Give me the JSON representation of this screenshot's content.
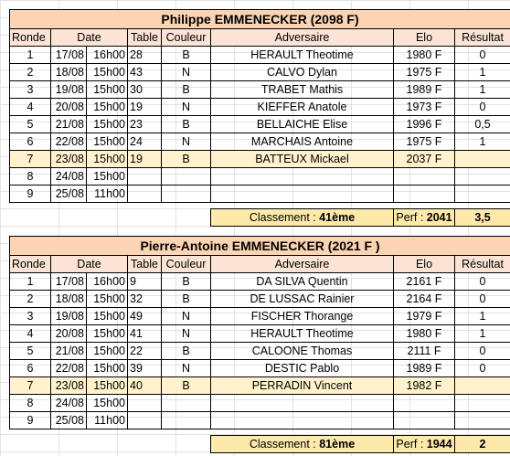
{
  "players": [
    {
      "title": "Philippe EMMENECKER (2098 F)",
      "headers": [
        "Ronde",
        "Date",
        "Table",
        "Couleur",
        "Adversaire",
        "Elo",
        "Résultat"
      ],
      "rows": [
        {
          "ronde": "1",
          "date": "17/08",
          "time": "16h00",
          "table": "28",
          "couleur": "B",
          "adversaire": "HERAULT Theotime",
          "elo": "1980 F",
          "resultat": "0"
        },
        {
          "ronde": "2",
          "date": "18/08",
          "time": "15h00",
          "table": "43",
          "couleur": "N",
          "adversaire": "CALVO Dylan",
          "elo": "1975 F",
          "resultat": "1"
        },
        {
          "ronde": "3",
          "date": "19/08",
          "time": "15h00",
          "table": "30",
          "couleur": "B",
          "adversaire": "TRABET Mathis",
          "elo": "1989 F",
          "resultat": "1"
        },
        {
          "ronde": "4",
          "date": "20/08",
          "time": "15h00",
          "table": "19",
          "couleur": "N",
          "adversaire": "KIEFFER Anatole",
          "elo": "1973 F",
          "resultat": "0"
        },
        {
          "ronde": "5",
          "date": "21/08",
          "time": "15h00",
          "table": "23",
          "couleur": "B",
          "adversaire": "BELLAICHE Elise",
          "elo": "1996 F",
          "resultat": "0,5"
        },
        {
          "ronde": "6",
          "date": "22/08",
          "time": "15h00",
          "table": "24",
          "couleur": "N",
          "adversaire": "MARCHAIS Antoine",
          "elo": "1975 F",
          "resultat": "1"
        },
        {
          "ronde": "7",
          "date": "23/08",
          "time": "15h00",
          "table": "19",
          "couleur": "B",
          "adversaire": "BATTEUX Mickael",
          "elo": "2037 F",
          "resultat": ""
        },
        {
          "ronde": "8",
          "date": "24/08",
          "time": "15h00",
          "table": "",
          "couleur": "",
          "adversaire": "",
          "elo": "",
          "resultat": ""
        },
        {
          "ronde": "9",
          "date": "25/08",
          "time": "11h00",
          "table": "",
          "couleur": "",
          "adversaire": "",
          "elo": "",
          "resultat": ""
        }
      ],
      "classement_label": "Classement : ",
      "classement_value": "41ème",
      "perf_label": "Perf : ",
      "perf_value": "2041",
      "score": "3,5"
    },
    {
      "title": "Pierre-Antoine EMMENECKER (2021 F )",
      "headers": [
        "Ronde",
        "Date",
        "Table",
        "Couleur",
        "Adversaire",
        "Elo",
        "Résultat"
      ],
      "rows": [
        {
          "ronde": "1",
          "date": "17/08",
          "time": "16h00",
          "table": "9",
          "couleur": "B",
          "adversaire": "DA SILVA Quentin",
          "elo": "2161 F",
          "resultat": "0"
        },
        {
          "ronde": "2",
          "date": "18/08",
          "time": "15h00",
          "table": "32",
          "couleur": "B",
          "adversaire": "DE LUSSAC Rainier",
          "elo": "2164 F",
          "resultat": "0"
        },
        {
          "ronde": "3",
          "date": "19/08",
          "time": "15h00",
          "table": "49",
          "couleur": "N",
          "adversaire": "FISCHER Thorange",
          "elo": "1979 F",
          "resultat": "1"
        },
        {
          "ronde": "4",
          "date": "20/08",
          "time": "15h00",
          "table": "41",
          "couleur": "N",
          "adversaire": "HERAULT Theotime",
          "elo": "1980 F",
          "resultat": "1"
        },
        {
          "ronde": "5",
          "date": "21/08",
          "time": "15h00",
          "table": "22",
          "couleur": "B",
          "adversaire": "CALOONE Thomas",
          "elo": "2111 F",
          "resultat": "0"
        },
        {
          "ronde": "6",
          "date": "22/08",
          "time": "15h00",
          "table": "39",
          "couleur": "N",
          "adversaire": "DESTIC Pablo",
          "elo": "1989 F",
          "resultat": "0"
        },
        {
          "ronde": "7",
          "date": "23/08",
          "time": "15h00",
          "table": "40",
          "couleur": "B",
          "adversaire": "PERRADIN Vincent",
          "elo": "1982 F",
          "resultat": ""
        },
        {
          "ronde": "8",
          "date": "24/08",
          "time": "15h00",
          "table": "",
          "couleur": "",
          "adversaire": "",
          "elo": "",
          "resultat": ""
        },
        {
          "ronde": "9",
          "date": "25/08",
          "time": "11h00",
          "table": "",
          "couleur": "",
          "adversaire": "",
          "elo": "",
          "resultat": ""
        }
      ],
      "classement_label": "Classement : ",
      "classement_value": "81ème",
      "perf_label": "Perf : ",
      "perf_value": "1944",
      "score": "2"
    }
  ],
  "highlight_color": "#fff2cc",
  "title_color": "#fbd4b4",
  "header_color": "#fbe4d5",
  "summary_color": "#fde9a9"
}
